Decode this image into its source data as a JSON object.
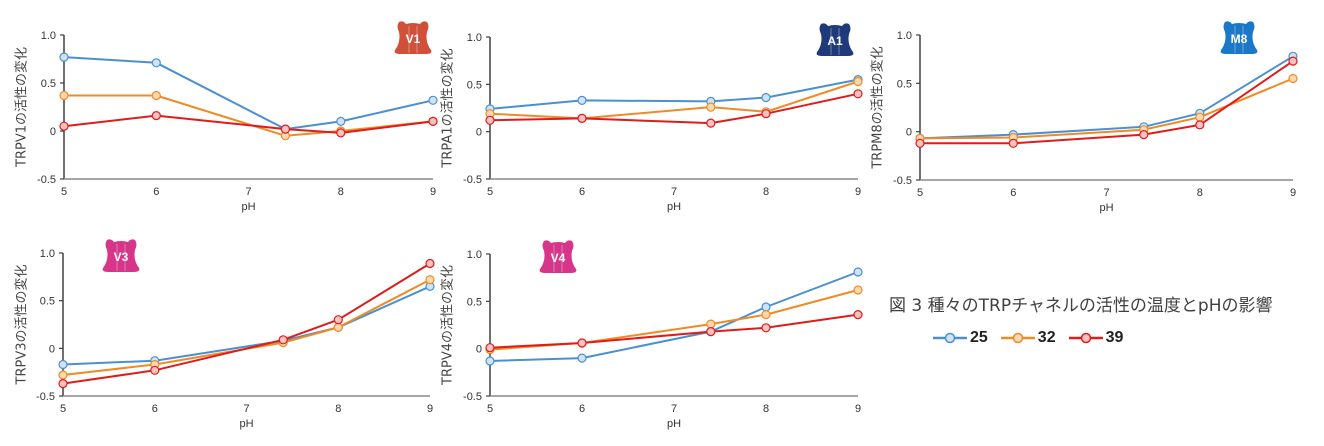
{
  "figure": {
    "caption": "図 3  種々のTRPチャネルの活性の温度とpHの影響"
  },
  "legend": [
    {
      "label": "25",
      "color": "#4a90d0"
    },
    {
      "label": "32",
      "color": "#f08a24"
    },
    {
      "label": "39",
      "color": "#e01b1b"
    }
  ],
  "chart_data": [
    {
      "type": "line",
      "channel_badge": {
        "label": "V1",
        "color": "#d0503a"
      },
      "title": "",
      "xlabel": "pH",
      "ylabel": "TRPV1の活性の変化",
      "x": [
        5,
        6,
        7.4,
        8,
        9
      ],
      "xticks": [
        "5",
        "6",
        "7",
        "8",
        "9"
      ],
      "xlim": [
        5,
        9
      ],
      "yticks": [
        "1.0",
        "0.5",
        "0",
        "-0.5"
      ],
      "ylim": [
        -0.5,
        1.0
      ],
      "grid": false,
      "series": [
        {
          "name": "25",
          "values": [
            0.77,
            0.71,
            0.02,
            0.1,
            0.32
          ]
        },
        {
          "name": "32",
          "values": [
            0.37,
            0.37,
            -0.05,
            0.0,
            0.1
          ]
        },
        {
          "name": "39",
          "values": [
            0.05,
            0.16,
            0.02,
            -0.02,
            0.1
          ]
        }
      ]
    },
    {
      "type": "line",
      "channel_badge": {
        "label": "A1",
        "color": "#1f3a7a"
      },
      "title": "",
      "xlabel": "pH",
      "ylabel": "TRPA1の活性の変化",
      "x": [
        5,
        6,
        7.4,
        8,
        9
      ],
      "xticks": [
        "5",
        "6",
        "7",
        "8",
        "9"
      ],
      "xlim": [
        5,
        9
      ],
      "yticks": [
        "1.0",
        "0.5",
        "0",
        "-0.5"
      ],
      "ylim": [
        -0.5,
        1.0
      ],
      "grid": false,
      "series": [
        {
          "name": "25",
          "values": [
            0.24,
            0.33,
            0.32,
            0.36,
            0.55
          ]
        },
        {
          "name": "32",
          "values": [
            0.19,
            0.14,
            0.26,
            0.21,
            0.53
          ]
        },
        {
          "name": "39",
          "values": [
            0.12,
            0.14,
            0.09,
            0.19,
            0.4
          ]
        }
      ]
    },
    {
      "type": "line",
      "channel_badge": {
        "label": "M8",
        "color": "#1b78c8"
      },
      "title": "",
      "xlabel": "pH",
      "ylabel": "TRPM8の活性の変化",
      "x": [
        5,
        6,
        7.4,
        8,
        9
      ],
      "xticks": [
        "5",
        "6",
        "7",
        "8",
        "9"
      ],
      "xlim": [
        5,
        9
      ],
      "yticks": [
        "1.0",
        "0.5",
        "0",
        "-0.5"
      ],
      "ylim": [
        -0.5,
        1.0
      ],
      "grid": false,
      "series": [
        {
          "name": "25",
          "values": [
            -0.07,
            -0.03,
            0.05,
            0.19,
            0.78
          ]
        },
        {
          "name": "32",
          "values": [
            -0.07,
            -0.06,
            0.02,
            0.15,
            0.55
          ]
        },
        {
          "name": "39",
          "values": [
            -0.12,
            -0.12,
            -0.03,
            0.07,
            0.73
          ]
        }
      ]
    },
    {
      "type": "line",
      "channel_badge": {
        "label": "V3",
        "color": "#d6358a"
      },
      "title": "",
      "xlabel": "pH",
      "ylabel": "TRPV3の活性の変化",
      "x": [
        5,
        6,
        7.4,
        8,
        9
      ],
      "xticks": [
        "5",
        "6",
        "7",
        "8",
        "9"
      ],
      "xlim": [
        5,
        9
      ],
      "yticks": [
        "1.0",
        "0.5",
        "0",
        "-0.5"
      ],
      "ylim": [
        -0.5,
        1.0
      ],
      "grid": false,
      "series": [
        {
          "name": "25",
          "values": [
            -0.17,
            -0.13,
            0.08,
            0.22,
            0.65
          ]
        },
        {
          "name": "32",
          "values": [
            -0.28,
            -0.17,
            0.06,
            0.22,
            0.72
          ]
        },
        {
          "name": "39",
          "values": [
            -0.37,
            -0.23,
            0.09,
            0.3,
            0.89
          ]
        }
      ]
    },
    {
      "type": "line",
      "channel_badge": {
        "label": "V4",
        "color": "#d6358a"
      },
      "title": "",
      "xlabel": "pH",
      "ylabel": "TRPV4の活性の変化",
      "x": [
        5,
        6,
        7.4,
        8,
        9
      ],
      "xticks": [
        "5",
        "6",
        "7",
        "8",
        "9"
      ],
      "xlim": [
        5,
        9
      ],
      "yticks": [
        "1.0",
        "0.5",
        "0",
        "-0.5"
      ],
      "ylim": [
        -0.5,
        1.0
      ],
      "grid": false,
      "series": [
        {
          "name": "25",
          "values": [
            -0.13,
            -0.1,
            0.18,
            0.44,
            0.81
          ]
        },
        {
          "name": "32",
          "values": [
            -0.01,
            0.06,
            0.26,
            0.36,
            0.62
          ]
        },
        {
          "name": "39",
          "values": [
            0.01,
            0.06,
            0.18,
            0.22,
            0.36
          ]
        }
      ]
    }
  ]
}
